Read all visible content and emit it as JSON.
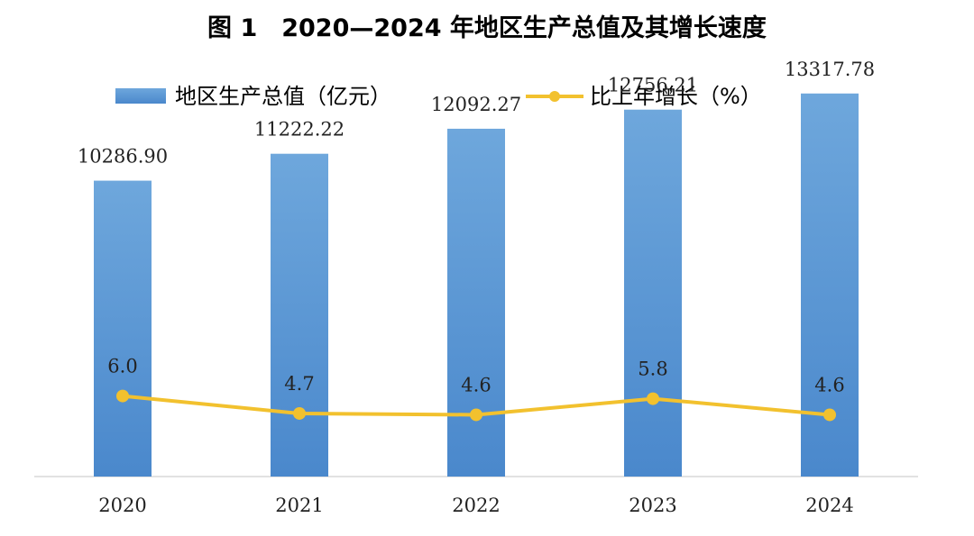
{
  "chart_data": {
    "type": "bar",
    "title": "图 1　2020—2024 年地区生产总值及其增长速度",
    "categories": [
      "2020",
      "2021",
      "2022",
      "2023",
      "2024"
    ],
    "series": [
      {
        "name": "地区生产总值（亿元）",
        "type": "bar",
        "values": [
          10286.9,
          11222.22,
          12092.27,
          12756.21,
          13317.78
        ],
        "labels": [
          "10286.90",
          "11222.22",
          "12092.27",
          "12756.21",
          "13317.78"
        ],
        "color": "#5b9bd5"
      },
      {
        "name": "比上年增长（%）",
        "type": "line",
        "values": [
          6.0,
          4.7,
          4.6,
          5.8,
          4.6
        ],
        "labels": [
          "6.0",
          "4.7",
          "4.6",
          "5.8",
          "4.6"
        ],
        "color": "#f2c12e"
      }
    ],
    "bar_axis_range": [
      0,
      14000
    ],
    "line_axis_range": [
      0,
      30
    ],
    "grid": false,
    "legend_position": "top"
  }
}
